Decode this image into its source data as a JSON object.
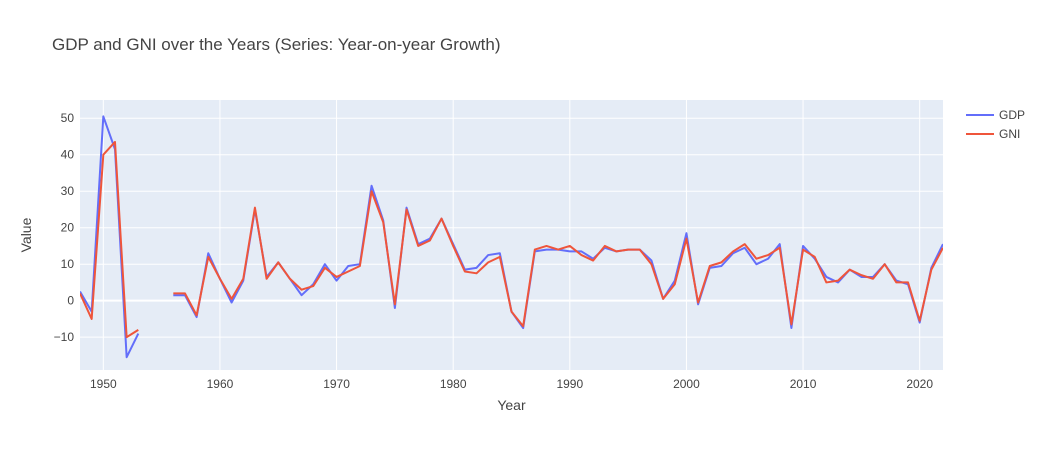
{
  "chart_data": {
    "type": "line",
    "title": "GDP and GNI over the Years (Series: Year-on-year Growth)",
    "xlabel": "Year",
    "ylabel": "Value",
    "xlim": [
      1948,
      2022
    ],
    "ylim": [
      -19,
      55
    ],
    "x_ticks": [
      1950,
      1960,
      1970,
      1980,
      1990,
      2000,
      2010,
      2020
    ],
    "y_ticks": [
      -10,
      0,
      10,
      20,
      30,
      40,
      50
    ],
    "grid": true,
    "legend_position": "top-right",
    "colors": {
      "plot_bg": "#e5ecf6",
      "grid": "#ffffff",
      "GDP": "#636efa",
      "GNI": "#ef553b"
    },
    "series": [
      {
        "name": "GDP",
        "points": [
          [
            1948,
            2.5
          ],
          [
            1949,
            -3
          ],
          [
            1950,
            50.5
          ],
          [
            1951,
            41.5
          ],
          [
            1952,
            -15.5
          ],
          [
            1953,
            -9
          ],
          [
            1954,
            null
          ],
          [
            1955,
            null
          ],
          [
            1956,
            1.5
          ],
          [
            1957,
            1.5
          ],
          [
            1958,
            -4.5
          ],
          [
            1959,
            13
          ],
          [
            1960,
            6
          ],
          [
            1961,
            -0.5
          ],
          [
            1962,
            5.5
          ],
          [
            1963,
            25
          ],
          [
            1964,
            6.5
          ],
          [
            1965,
            10.5
          ],
          [
            1966,
            6
          ],
          [
            1967,
            1.5
          ],
          [
            1968,
            4.5
          ],
          [
            1969,
            10
          ],
          [
            1970,
            5.5
          ],
          [
            1971,
            9.5
          ],
          [
            1972,
            10
          ],
          [
            1973,
            31.5
          ],
          [
            1974,
            22
          ],
          [
            1975,
            -2
          ],
          [
            1976,
            25.5
          ],
          [
            1977,
            15.5
          ],
          [
            1978,
            17
          ],
          [
            1979,
            22.5
          ],
          [
            1980,
            15.5
          ],
          [
            1981,
            8.5
          ],
          [
            1982,
            9
          ],
          [
            1983,
            12.5
          ],
          [
            1984,
            13
          ],
          [
            1985,
            -3
          ],
          [
            1986,
            -7.5
          ],
          [
            1987,
            13.5
          ],
          [
            1988,
            14
          ],
          [
            1989,
            14
          ],
          [
            1990,
            13.5
          ],
          [
            1991,
            13.5
          ],
          [
            1992,
            11.5
          ],
          [
            1993,
            14.5
          ],
          [
            1994,
            13.5
          ],
          [
            1995,
            14
          ],
          [
            1996,
            14
          ],
          [
            1997,
            11
          ],
          [
            1998,
            0.5
          ],
          [
            1999,
            5.5
          ],
          [
            2000,
            18.5
          ],
          [
            2001,
            -1
          ],
          [
            2002,
            9
          ],
          [
            2003,
            9.5
          ],
          [
            2004,
            13
          ],
          [
            2005,
            14.5
          ],
          [
            2006,
            10
          ],
          [
            2007,
            11.5
          ],
          [
            2008,
            15.5
          ],
          [
            2009,
            -7.5
          ],
          [
            2010,
            15
          ],
          [
            2011,
            11.5
          ],
          [
            2012,
            6.5
          ],
          [
            2013,
            5
          ],
          [
            2014,
            8.5
          ],
          [
            2015,
            6.5
          ],
          [
            2016,
            6.5
          ],
          [
            2017,
            10
          ],
          [
            2018,
            5.5
          ],
          [
            2019,
            4.5
          ],
          [
            2020,
            -6
          ],
          [
            2021,
            9
          ],
          [
            2022,
            15.5
          ]
        ]
      },
      {
        "name": "GNI",
        "points": [
          [
            1948,
            2
          ],
          [
            1949,
            -5
          ],
          [
            1950,
            40
          ],
          [
            1951,
            43.5
          ],
          [
            1952,
            -10
          ],
          [
            1953,
            -8
          ],
          [
            1954,
            null
          ],
          [
            1955,
            null
          ],
          [
            1956,
            2
          ],
          [
            1957,
            2
          ],
          [
            1958,
            -4
          ],
          [
            1959,
            12
          ],
          [
            1960,
            6
          ],
          [
            1961,
            0.5
          ],
          [
            1962,
            6
          ],
          [
            1963,
            25.5
          ],
          [
            1964,
            6
          ],
          [
            1965,
            10.5
          ],
          [
            1966,
            6
          ],
          [
            1967,
            3
          ],
          [
            1968,
            4
          ],
          [
            1969,
            9
          ],
          [
            1970,
            6.5
          ],
          [
            1971,
            8
          ],
          [
            1972,
            9.5
          ],
          [
            1973,
            30
          ],
          [
            1974,
            21.5
          ],
          [
            1975,
            -1
          ],
          [
            1976,
            25
          ],
          [
            1977,
            15
          ],
          [
            1978,
            16.5
          ],
          [
            1979,
            22.5
          ],
          [
            1980,
            15
          ],
          [
            1981,
            8
          ],
          [
            1982,
            7.5
          ],
          [
            1983,
            10.5
          ],
          [
            1984,
            12
          ],
          [
            1985,
            -3
          ],
          [
            1986,
            -7
          ],
          [
            1987,
            14
          ],
          [
            1988,
            15
          ],
          [
            1989,
            14
          ],
          [
            1990,
            15
          ],
          [
            1991,
            12.5
          ],
          [
            1992,
            11
          ],
          [
            1993,
            15
          ],
          [
            1994,
            13.5
          ],
          [
            1995,
            14
          ],
          [
            1996,
            14
          ],
          [
            1997,
            10
          ],
          [
            1998,
            0.5
          ],
          [
            1999,
            4.5
          ],
          [
            2000,
            17
          ],
          [
            2001,
            -0.5
          ],
          [
            2002,
            9.5
          ],
          [
            2003,
            10.5
          ],
          [
            2004,
            13.5
          ],
          [
            2005,
            15.5
          ],
          [
            2006,
            11.5
          ],
          [
            2007,
            12.5
          ],
          [
            2008,
            14.5
          ],
          [
            2009,
            -6.5
          ],
          [
            2010,
            14
          ],
          [
            2011,
            12
          ],
          [
            2012,
            5
          ],
          [
            2013,
            5.5
          ],
          [
            2014,
            8.5
          ],
          [
            2015,
            7
          ],
          [
            2016,
            6
          ],
          [
            2017,
            10
          ],
          [
            2018,
            5
          ],
          [
            2019,
            5
          ],
          [
            2020,
            -5.5
          ],
          [
            2021,
            8.5
          ],
          [
            2022,
            14.5
          ]
        ]
      }
    ]
  }
}
